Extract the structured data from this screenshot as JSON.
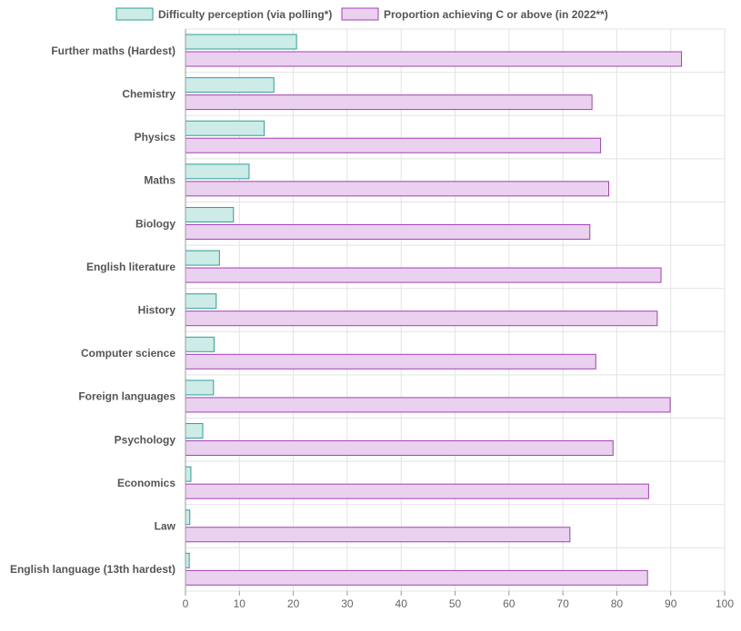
{
  "chart_data": {
    "type": "bar",
    "orientation": "horizontal",
    "categories": [
      "Further maths (Hardest)",
      "Chemistry",
      "Physics",
      "Maths",
      "Biology",
      "English literature",
      "History",
      "Computer science",
      "Foreign languages",
      "Psychology",
      "Economics",
      "Law",
      "English language (13th hardest)"
    ],
    "series": [
      {
        "name": "Difficulty perception (via polling*)",
        "color": "#2aa198",
        "fill": "#cdebe7",
        "values": [
          20.6,
          16.4,
          14.6,
          11.8,
          8.9,
          6.3,
          5.7,
          5.3,
          5.2,
          3.2,
          1.0,
          0.8,
          0.7
        ]
      },
      {
        "name": "Proportion achieving C or above (in 2022**)",
        "color": "#a43fb5",
        "fill": "#ead1ef",
        "values": [
          92.0,
          75.4,
          77.0,
          78.5,
          75.0,
          88.2,
          87.5,
          76.1,
          89.9,
          79.3,
          85.9,
          71.3,
          85.7
        ]
      }
    ],
    "xlim": [
      0,
      100
    ],
    "xticks": [
      0,
      10,
      20,
      30,
      40,
      50,
      60,
      70,
      80,
      90,
      100
    ],
    "grid": true,
    "legend_position": "top",
    "title": "",
    "xlabel": "",
    "ylabel": ""
  }
}
